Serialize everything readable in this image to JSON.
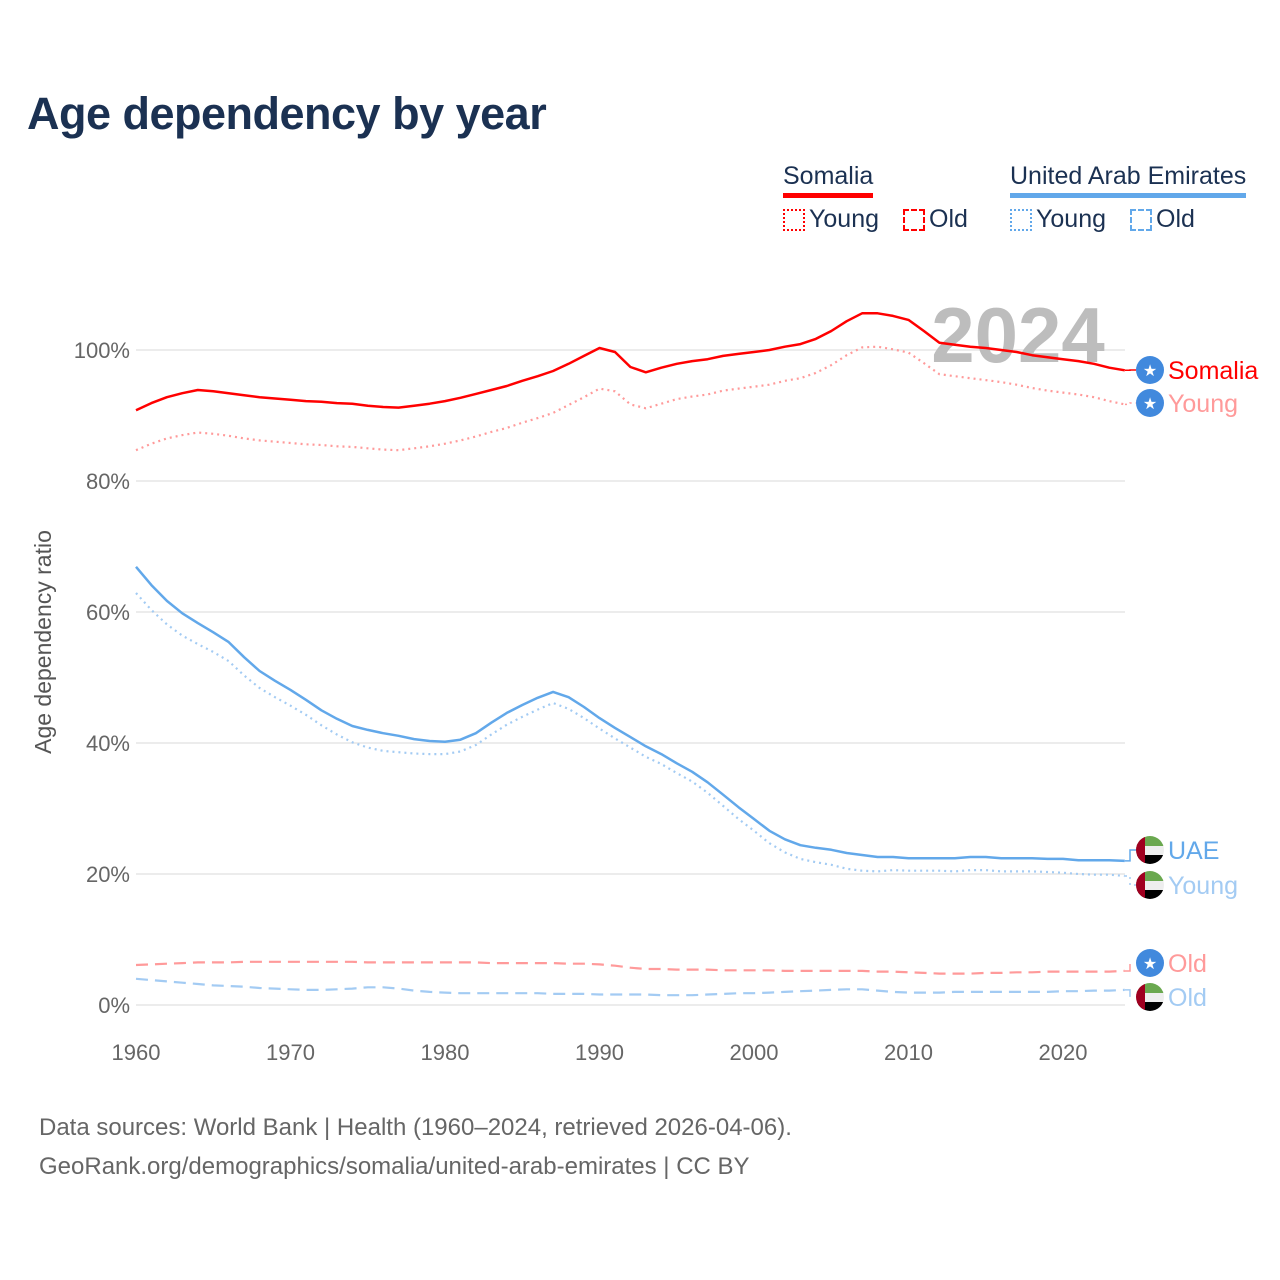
{
  "title": "Age dependency by year",
  "legend": {
    "groups": [
      {
        "name": "Somalia",
        "color": "#ff0000",
        "items": [
          "Young",
          "Old"
        ]
      },
      {
        "name": "United Arab Emirates",
        "color": "#62a8ea",
        "items": [
          "Young",
          "Old"
        ]
      }
    ]
  },
  "footer": {
    "line1": "Data sources: World Bank | Health (1960–2024, retrieved 2026-04-06).",
    "line2": "GeoRank.org/demographics/somalia/united-arab-emirates | CC BY"
  },
  "chart_data": {
    "type": "line",
    "title": "Age dependency by year",
    "xlabel": "",
    "ylabel": "Age dependency ratio",
    "watermark_year": "2024",
    "xlim": [
      1960,
      2024
    ],
    "ylim": [
      0,
      110
    ],
    "x_ticks": [
      "1960",
      "1970",
      "1980",
      "1990",
      "2000",
      "2010",
      "2020"
    ],
    "y_ticks": [
      "0%",
      "20%",
      "40%",
      "60%",
      "80%",
      "100%"
    ],
    "grid": true,
    "x_start": 1960,
    "series": [
      {
        "name": "Somalia",
        "end_label": "Somalia",
        "country": "Somalia",
        "style": "solid",
        "color": "#ff0000",
        "values": [
          90.8,
          91.9,
          92.8,
          93.4,
          93.9,
          93.7,
          93.4,
          93.1,
          92.8,
          92.6,
          92.4,
          92.2,
          92.1,
          91.9,
          91.8,
          91.5,
          91.3,
          91.2,
          91.5,
          91.8,
          92.2,
          92.7,
          93.3,
          93.9,
          94.5,
          95.3,
          96.0,
          96.8,
          97.9,
          99.1,
          100.3,
          99.7,
          97.4,
          96.6,
          97.3,
          97.9,
          98.3,
          98.6,
          99.1,
          99.4,
          99.7,
          100.0,
          100.5,
          100.9,
          101.7,
          102.9,
          104.4,
          105.6,
          105.6,
          105.2,
          104.6,
          102.9,
          101.1,
          100.8,
          100.5,
          100.3,
          100.0,
          99.7,
          99.2,
          98.9,
          98.6,
          98.3,
          97.9,
          97.3,
          96.9
        ]
      },
      {
        "name": "Somalia Young",
        "end_label": "Young",
        "country": "Somalia",
        "style": "dotted",
        "color": "#ff9a9a",
        "values": [
          84.7,
          85.7,
          86.5,
          87.0,
          87.4,
          87.2,
          86.9,
          86.5,
          86.2,
          86.0,
          85.8,
          85.6,
          85.5,
          85.3,
          85.2,
          85.0,
          84.8,
          84.7,
          85.0,
          85.3,
          85.7,
          86.2,
          86.8,
          87.5,
          88.1,
          88.9,
          89.6,
          90.4,
          91.6,
          92.8,
          94.1,
          93.7,
          91.7,
          91.1,
          91.8,
          92.5,
          92.9,
          93.2,
          93.8,
          94.1,
          94.4,
          94.7,
          95.3,
          95.7,
          96.5,
          97.7,
          99.2,
          100.4,
          100.5,
          100.1,
          99.6,
          98.0,
          96.3,
          96.0,
          95.7,
          95.4,
          95.1,
          94.7,
          94.2,
          93.8,
          93.5,
          93.2,
          92.8,
          92.2,
          91.7
        ]
      },
      {
        "name": "United Arab Emirates",
        "end_label": "UAE",
        "country": "UAE",
        "style": "solid",
        "color": "#62a8ea",
        "values": [
          66.9,
          64.1,
          61.7,
          59.8,
          58.3,
          56.9,
          55.4,
          53.1,
          51.0,
          49.5,
          48.1,
          46.6,
          45.0,
          43.7,
          42.6,
          42.0,
          41.5,
          41.1,
          40.6,
          40.3,
          40.2,
          40.5,
          41.5,
          43.1,
          44.6,
          45.8,
          46.9,
          47.8,
          47.0,
          45.5,
          43.8,
          42.3,
          40.9,
          39.5,
          38.3,
          36.9,
          35.6,
          34.0,
          32.1,
          30.2,
          28.4,
          26.6,
          25.3,
          24.4,
          24.0,
          23.7,
          23.2,
          22.9,
          22.6,
          22.6,
          22.4,
          22.4,
          22.4,
          22.4,
          22.6,
          22.6,
          22.4,
          22.4,
          22.4,
          22.3,
          22.3,
          22.1,
          22.1,
          22.1,
          22.0
        ]
      },
      {
        "name": "United Arab Emirates Young",
        "end_label": "Young",
        "country": "UAE",
        "style": "dotted",
        "color": "#a3cbf3",
        "values": [
          62.9,
          60.3,
          58.1,
          56.4,
          55.1,
          53.9,
          52.5,
          50.3,
          48.4,
          47.0,
          45.7,
          44.3,
          42.7,
          41.3,
          40.1,
          39.3,
          38.8,
          38.6,
          38.4,
          38.3,
          38.3,
          38.7,
          39.7,
          41.3,
          42.8,
          44.0,
          45.1,
          46.1,
          45.2,
          43.8,
          42.2,
          40.7,
          39.3,
          37.9,
          36.8,
          35.4,
          34.1,
          32.4,
          30.4,
          28.4,
          26.6,
          24.7,
          23.3,
          22.3,
          21.8,
          21.4,
          20.8,
          20.5,
          20.4,
          20.6,
          20.5,
          20.5,
          20.5,
          20.4,
          20.6,
          20.6,
          20.4,
          20.4,
          20.4,
          20.3,
          20.2,
          20.0,
          19.9,
          19.9,
          19.7
        ]
      },
      {
        "name": "Somalia Old",
        "end_label": "Old",
        "country": "Somalia",
        "style": "dashed",
        "color": "#ff9a9a",
        "values": [
          6.1,
          6.2,
          6.3,
          6.4,
          6.5,
          6.5,
          6.5,
          6.6,
          6.6,
          6.6,
          6.6,
          6.6,
          6.6,
          6.6,
          6.6,
          6.5,
          6.5,
          6.5,
          6.5,
          6.5,
          6.5,
          6.5,
          6.5,
          6.4,
          6.4,
          6.4,
          6.4,
          6.4,
          6.3,
          6.3,
          6.2,
          6.0,
          5.7,
          5.5,
          5.5,
          5.4,
          5.4,
          5.4,
          5.3,
          5.3,
          5.3,
          5.3,
          5.2,
          5.2,
          5.2,
          5.2,
          5.2,
          5.2,
          5.1,
          5.1,
          5.0,
          4.9,
          4.8,
          4.8,
          4.8,
          4.9,
          4.9,
          5.0,
          5.0,
          5.1,
          5.1,
          5.1,
          5.1,
          5.1,
          5.2
        ]
      },
      {
        "name": "United Arab Emirates Old",
        "end_label": "Old",
        "country": "UAE",
        "style": "dashed",
        "color": "#a3cbf3",
        "values": [
          4.0,
          3.8,
          3.6,
          3.4,
          3.2,
          3.0,
          2.9,
          2.8,
          2.6,
          2.5,
          2.4,
          2.3,
          2.3,
          2.4,
          2.5,
          2.7,
          2.7,
          2.5,
          2.2,
          2.0,
          1.9,
          1.8,
          1.8,
          1.8,
          1.8,
          1.8,
          1.8,
          1.7,
          1.7,
          1.7,
          1.6,
          1.6,
          1.6,
          1.6,
          1.5,
          1.5,
          1.5,
          1.6,
          1.7,
          1.8,
          1.8,
          1.9,
          2.0,
          2.1,
          2.2,
          2.3,
          2.4,
          2.4,
          2.2,
          2.0,
          1.9,
          1.9,
          1.9,
          2.0,
          2.0,
          2.0,
          2.0,
          2.0,
          2.0,
          2.0,
          2.1,
          2.1,
          2.2,
          2.2,
          2.3
        ]
      }
    ]
  }
}
